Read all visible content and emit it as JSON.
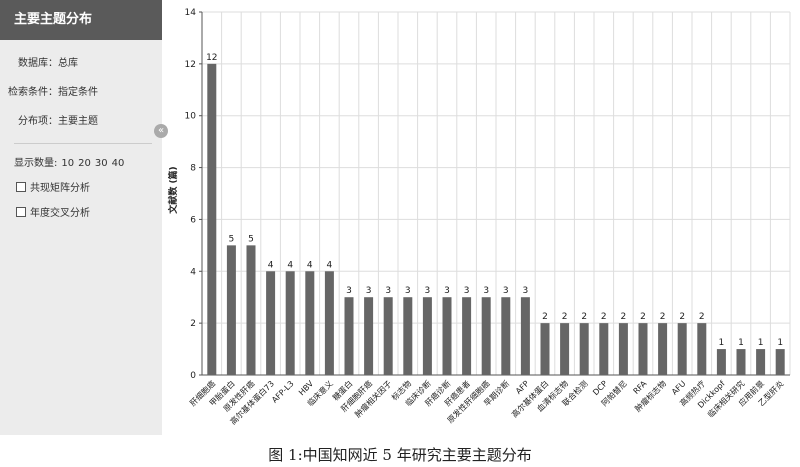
{
  "sidebar": {
    "title": "主要主题分布",
    "items": [
      "数据库：总库",
      "检索条件：指定条件",
      "分布项：主要主题"
    ],
    "count_label": "显示数量:",
    "count_options": [
      "10",
      "20",
      "30",
      "40"
    ],
    "checkboxes": [
      "共现矩阵分析",
      "年度交叉分析"
    ]
  },
  "caption": "图 1:中国知网近 5 年研究主要主题分布",
  "chart_data": {
    "type": "bar",
    "y_label": "文献数 (篇)",
    "color": "#666666",
    "grid": true,
    "categories": [
      "肝细胞癌",
      "甲胎蛋白",
      "原发性肝癌",
      "高尔基体蛋白73",
      "AFP-L3",
      "HBV",
      "临床意义",
      "糖蛋白",
      "肝细胞肝癌",
      "肿瘤相关因子",
      "标志物",
      "临床诊断",
      "肝癌诊断",
      "肝癌患者",
      "原发性肝细胞癌",
      "早期诊断",
      "AFP",
      "高尔基体蛋白",
      "血清标志物",
      "联合检测",
      "DCP",
      "阿帕替尼",
      "RFA",
      "肿瘤标志物",
      "AFU",
      "高频热疗",
      "Dickkopf",
      "临床相关研究",
      "应用前景",
      "乙型肝炎"
    ],
    "values": [
      12,
      5,
      5,
      4,
      4,
      4,
      4,
      3,
      3,
      3,
      3,
      3,
      3,
      3,
      3,
      3,
      3,
      2,
      2,
      2,
      2,
      2,
      2,
      2,
      2,
      2,
      1,
      1,
      1,
      1
    ],
    "ylim": [
      0,
      14
    ],
    "yticks": [
      0,
      2,
      4,
      6,
      8,
      10,
      12,
      14
    ]
  }
}
